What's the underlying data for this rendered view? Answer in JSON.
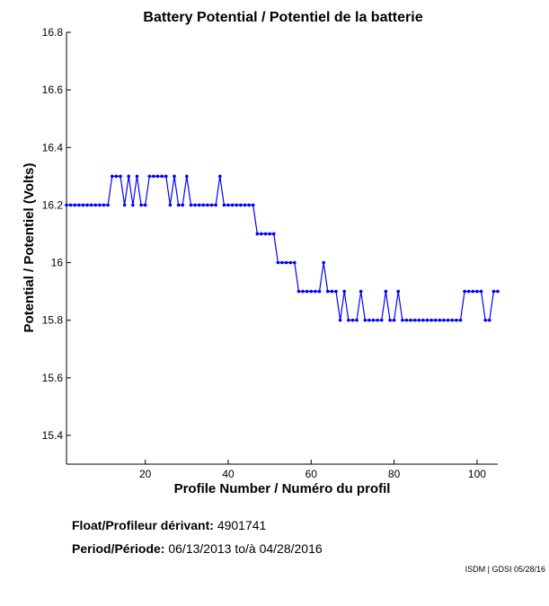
{
  "chart_data": {
    "type": "line",
    "title": "Battery Potential / Potentiel de la batterie",
    "xlabel": "Profile Number / Numéro du profil",
    "ylabel": "Potential / Potentiel (Volts)",
    "xlim": [
      1,
      105
    ],
    "ylim": [
      15.3,
      16.8
    ],
    "xticks": [
      20,
      40,
      60,
      80,
      100
    ],
    "yticks": [
      15.4,
      15.6,
      15.8,
      16,
      16.2,
      16.4,
      16.6,
      16.8
    ],
    "ytick_labels": [
      "15.4",
      "15.6",
      "15.8",
      "16",
      "16.2",
      "16.4",
      "16.6",
      "16.8"
    ],
    "line_color": "#0000ff",
    "marker": "dot",
    "series": [
      {
        "name": "Battery Potential",
        "x": [
          1,
          2,
          3,
          4,
          5,
          6,
          7,
          8,
          9,
          10,
          11,
          12,
          13,
          14,
          15,
          16,
          17,
          18,
          19,
          20,
          21,
          22,
          23,
          24,
          25,
          26,
          27,
          28,
          29,
          30,
          31,
          32,
          33,
          34,
          35,
          36,
          37,
          38,
          39,
          40,
          41,
          42,
          43,
          44,
          45,
          46,
          47,
          48,
          49,
          50,
          51,
          52,
          53,
          54,
          55,
          56,
          57,
          58,
          59,
          60,
          61,
          62,
          63,
          64,
          65,
          66,
          67,
          68,
          69,
          70,
          71,
          72,
          73,
          74,
          75,
          76,
          77,
          78,
          79,
          80,
          81,
          82,
          83,
          84,
          85,
          86,
          87,
          88,
          89,
          90,
          91,
          92,
          93,
          94,
          95,
          96,
          97,
          98,
          99,
          100,
          101,
          102,
          103,
          104,
          105
        ],
        "y": [
          16.2,
          16.2,
          16.2,
          16.2,
          16.2,
          16.2,
          16.2,
          16.2,
          16.2,
          16.2,
          16.2,
          16.3,
          16.3,
          16.3,
          16.2,
          16.3,
          16.2,
          16.3,
          16.2,
          16.2,
          16.3,
          16.3,
          16.3,
          16.3,
          16.3,
          16.2,
          16.3,
          16.2,
          16.2,
          16.3,
          16.2,
          16.2,
          16.2,
          16.2,
          16.2,
          16.2,
          16.2,
          16.3,
          16.2,
          16.2,
          16.2,
          16.2,
          16.2,
          16.2,
          16.2,
          16.2,
          16.1,
          16.1,
          16.1,
          16.1,
          16.1,
          16.0,
          16.0,
          16.0,
          16.0,
          16.0,
          15.9,
          15.9,
          15.9,
          15.9,
          15.9,
          15.9,
          16.0,
          15.9,
          15.9,
          15.9,
          15.8,
          15.9,
          15.8,
          15.8,
          15.8,
          15.9,
          15.8,
          15.8,
          15.8,
          15.8,
          15.8,
          15.9,
          15.8,
          15.8,
          15.9,
          15.8,
          15.8,
          15.8,
          15.8,
          15.8,
          15.8,
          15.8,
          15.8,
          15.8,
          15.8,
          15.8,
          15.8,
          15.8,
          15.8,
          15.8,
          15.9,
          15.9,
          15.9,
          15.9,
          15.9,
          15.8,
          15.8,
          15.9,
          15.9
        ]
      }
    ]
  },
  "info": {
    "float_label": "Float/Profileur dérivant:",
    "float_value": "4901741",
    "period_label": "Period/Période:",
    "period_start": "06/13/2013",
    "period_sep": "to/à",
    "period_end": "04/28/2016",
    "credit": "ISDM | GDSI 05/28/16"
  }
}
